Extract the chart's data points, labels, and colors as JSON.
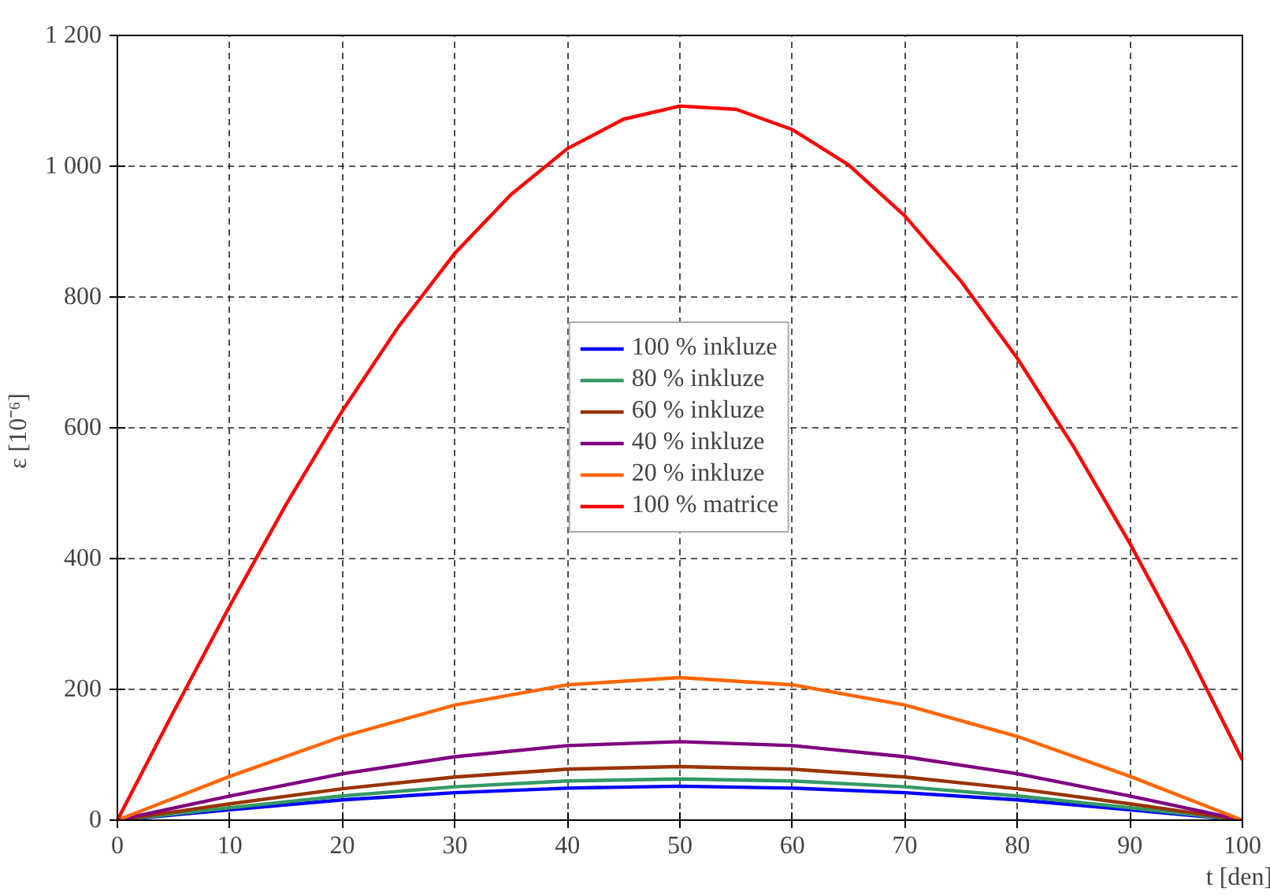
{
  "chart_data": {
    "type": "line",
    "xlabel": "t  [den]",
    "ylabel": "ε  [10⁻⁶]",
    "x": [
      0,
      10,
      20,
      30,
      40,
      50,
      60,
      70,
      80,
      90,
      100
    ],
    "series": [
      {
        "name": "100 % inkluze",
        "color": "#0000ff",
        "values": [
          0,
          16,
          31,
          42,
          49,
          52,
          49,
          42,
          31,
          16,
          0
        ]
      },
      {
        "name": "80 % inkluze",
        "color": "#339966",
        "values": [
          0,
          19,
          37,
          51,
          60,
          63,
          60,
          51,
          37,
          19,
          0
        ]
      },
      {
        "name": "60 % inkluze",
        "color": "#993300",
        "values": [
          0,
          25,
          48,
          66,
          78,
          82,
          78,
          66,
          48,
          25,
          0
        ]
      },
      {
        "name": "40 % inkluze",
        "color": "#800080",
        "values": [
          0,
          37,
          71,
          97,
          114,
          120,
          114,
          97,
          71,
          37,
          0
        ]
      },
      {
        "name": "20 % inkluze",
        "color": "#ff6600",
        "values": [
          0,
          67,
          128,
          176,
          207,
          218,
          207,
          176,
          128,
          67,
          0
        ]
      },
      {
        "name": "100 % matrice",
        "color": "#ff0000",
        "x": [
          0,
          5,
          10,
          15,
          20,
          25,
          30,
          35,
          40,
          45,
          50,
          55,
          60,
          65,
          70,
          75,
          80,
          85,
          90,
          95,
          100
        ],
        "values": [
          0,
          166,
          328,
          483,
          626,
          755,
          867,
          957,
          1027,
          1072,
          1092,
          1087,
          1056,
          1002,
          924,
          824,
          706,
          571,
          423,
          263,
          92
        ]
      }
    ],
    "xlim": [
      0,
      100
    ],
    "ylim": [
      0,
      1200
    ],
    "xticks": [
      0,
      10,
      20,
      30,
      40,
      50,
      60,
      70,
      80,
      90,
      100
    ],
    "yticks": [
      0,
      200,
      400,
      600,
      800,
      {
        "value": 1000,
        "label": "1 000"
      },
      {
        "value": 1200,
        "label": "1 200"
      }
    ],
    "grid": true,
    "legend": "center",
    "line_style": "solid",
    "marker": "none"
  }
}
